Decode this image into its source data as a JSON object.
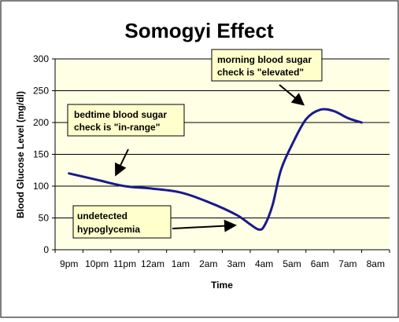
{
  "chart_data": {
    "type": "line",
    "title": "Somogyi Effect",
    "xlabel": "Time",
    "ylabel": "Blood Glucose Level (mg/dl)",
    "ylim": [
      0,
      300
    ],
    "yticks": [
      0,
      50,
      100,
      150,
      200,
      250,
      300
    ],
    "categories": [
      "9pm",
      "10pm",
      "11pm",
      "12am",
      "1am",
      "2am",
      "3am",
      "4am",
      "5am",
      "6am",
      "7am",
      "8am"
    ],
    "grid": true,
    "series": [
      {
        "color": "#1a1a8c",
        "x": [
          0,
          1,
          2,
          3,
          4,
          5,
          6,
          6.5,
          6.8,
          7.0,
          7.3,
          7.6,
          8.0,
          8.5,
          9.0,
          9.5,
          10.0,
          10.5
        ],
        "values": [
          120,
          110,
          100,
          96,
          90,
          75,
          55,
          40,
          32,
          37,
          70,
          125,
          165,
          205,
          220,
          218,
          207,
          200
        ]
      }
    ],
    "annotations": [
      {
        "id": "bedtime",
        "lines": [
          "bedtime blood sugar",
          "check is \"in-range\""
        ]
      },
      {
        "id": "morning",
        "lines": [
          "morning blood sugar",
          "check is \"elevated\""
        ]
      },
      {
        "id": "hypo",
        "lines": [
          "undetected",
          "hypoglycemia"
        ]
      }
    ],
    "colors": {
      "plot_background": "#ffffe5",
      "outer_background": "#ffffff",
      "line": "#1a1a8c",
      "callout_background": "#ffffcc"
    }
  }
}
